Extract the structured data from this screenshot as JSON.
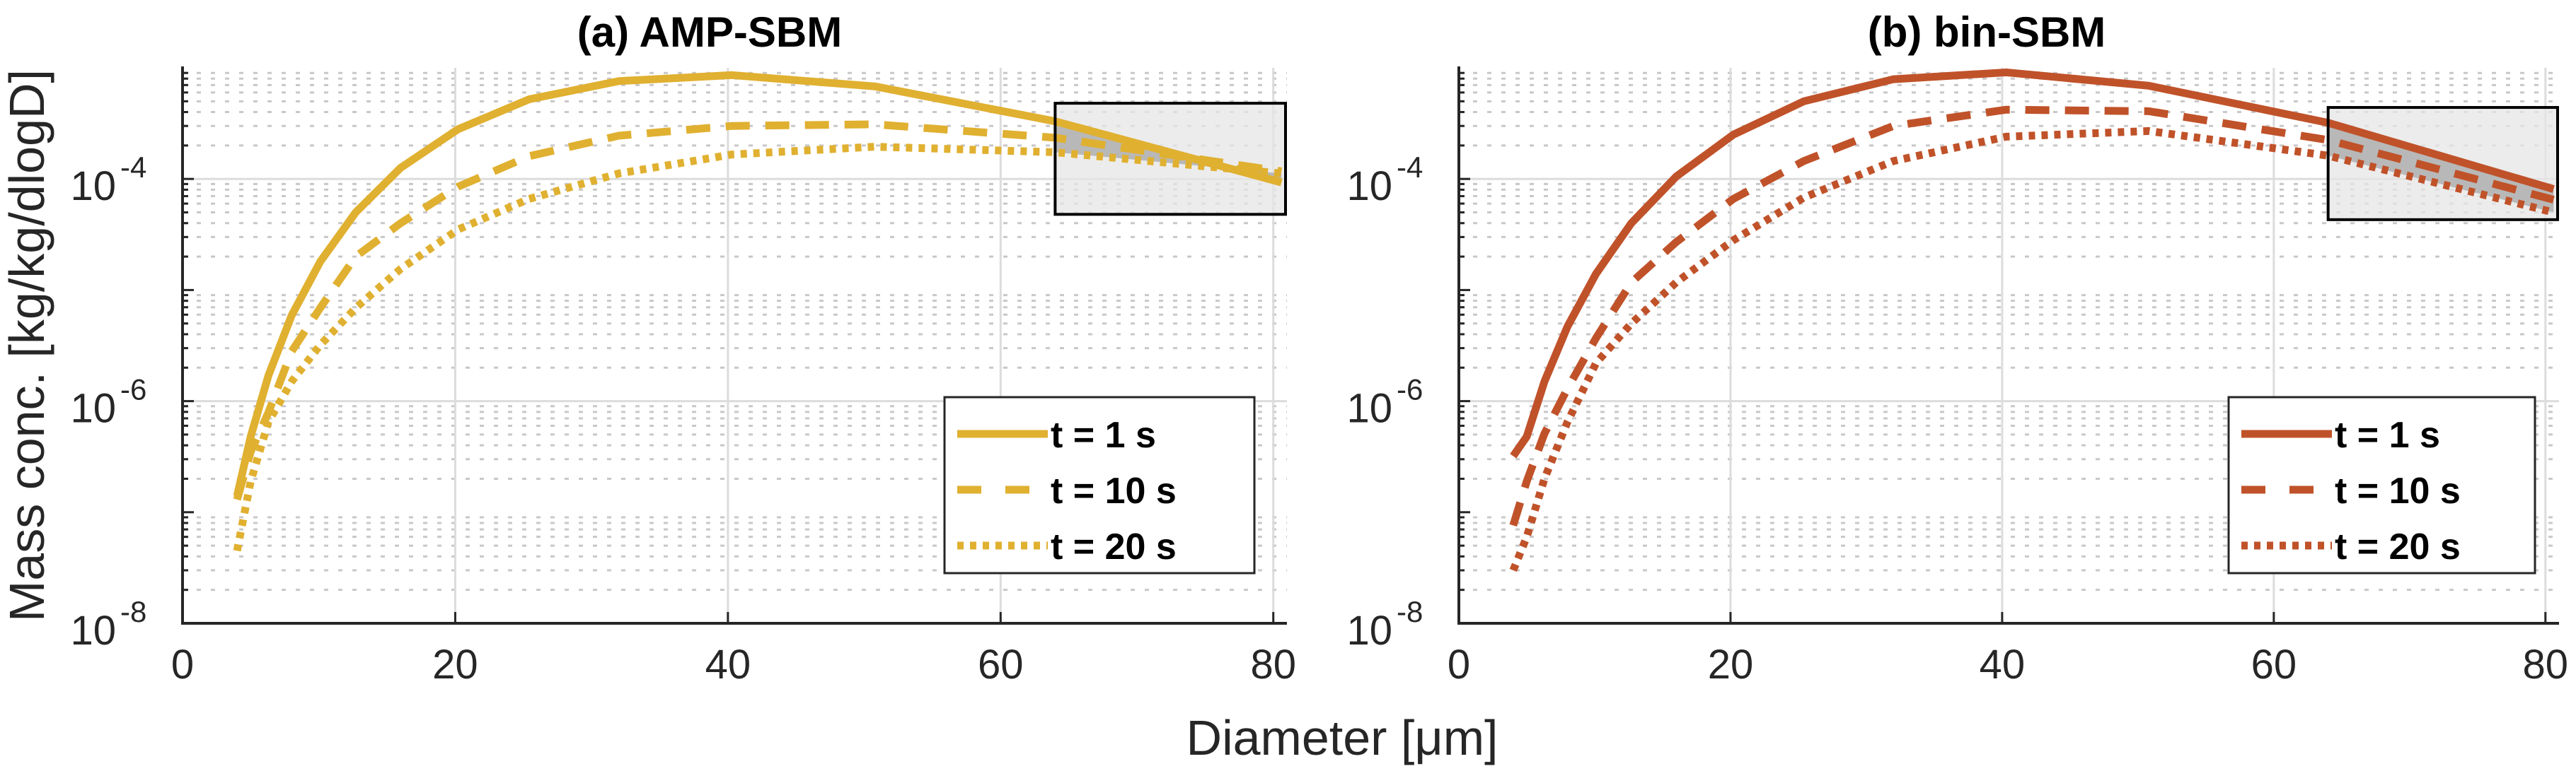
{
  "colors": {
    "panel_a": "#E0B030",
    "panel_b": "#C0522A",
    "highlight_box": "#E6E6E6",
    "highlight_band": "#B8B8B8"
  },
  "chart_data": [
    {
      "type": "line",
      "title": "(a) AMP-SBM",
      "xlabel": "Diameter [μm]",
      "ylabel": "Mass conc. [kg/kg/dlogD]",
      "yscale": "log",
      "xlim": [
        0,
        81
      ],
      "ylim": [
        1e-08,
        0.001
      ],
      "xticks": [
        0,
        20,
        40,
        60,
        80
      ],
      "xtick_labels": [
        "0",
        "20",
        "40",
        "60",
        "80"
      ],
      "yticks": [
        1e-08,
        1e-06,
        0.0001
      ],
      "ytick_labels": [
        {
          "base": "10",
          "exp": "-8"
        },
        {
          "base": "10",
          "exp": "-6"
        },
        {
          "base": "10",
          "exp": "-4"
        }
      ],
      "grid": true,
      "legend_position": "lower-right",
      "highlight_region": {
        "x": [
          64,
          81
        ],
        "y": [
          4.8e-05,
          0.00048
        ]
      },
      "x": [
        4.0,
        5.0,
        6.3,
        8.0,
        10.1,
        12.7,
        16.0,
        20.2,
        25.4,
        32.0,
        40.3,
        50.8,
        64.0,
        80.6
      ],
      "series": [
        {
          "name": "t = 1 s",
          "style": "solid",
          "values": [
            1.4e-07,
            4.8e-07,
            1.7e-06,
            5.9e-06,
            1.8e-05,
            5e-05,
            0.000126,
            0.00028,
            0.00052,
            0.00076,
            0.00086,
            0.00068,
            0.00033,
            9.3e-05
          ]
        },
        {
          "name": "t = 10 s",
          "style": "dashed",
          "values": [
            1.3e-07,
            3.5e-07,
            7.9e-07,
            2.8e-06,
            6.9e-06,
            2e-05,
            4e-05,
            8.5e-05,
            0.00016,
            0.000245,
            0.0003,
            0.00031,
            0.000235,
            0.000117
          ]
        },
        {
          "name": "t = 20 s",
          "style": "dotted",
          "values": [
            4.5e-08,
            1.9e-07,
            6.5e-07,
            1.5e-06,
            3.2e-06,
            6.9e-06,
            1.55e-05,
            3.5e-05,
            6.6e-05,
            0.000112,
            0.000166,
            0.000195,
            0.000174,
            0.000112
          ]
        }
      ]
    },
    {
      "type": "line",
      "title": "(b) bin-SBM",
      "xlabel": "Diameter [μm]",
      "ylabel": "Mass conc. [kg/kg/dlogD]",
      "yscale": "log",
      "xlim": [
        0,
        81
      ],
      "ylim": [
        1e-08,
        0.001
      ],
      "xticks": [
        0,
        20,
        40,
        60,
        80
      ],
      "xtick_labels": [
        "0",
        "20",
        "40",
        "60",
        "80"
      ],
      "yticks": [
        1e-08,
        1e-06,
        0.0001
      ],
      "ytick_labels": [
        {
          "base": "10",
          "exp": "-8"
        },
        {
          "base": "10",
          "exp": "-6"
        },
        {
          "base": "10",
          "exp": "-4"
        }
      ],
      "grid": true,
      "legend_position": "lower-right",
      "highlight_region": {
        "x": [
          64,
          81
        ],
        "y": [
          4.3e-05,
          0.00044
        ]
      },
      "x": [
        4.0,
        5.0,
        6.3,
        8.0,
        10.1,
        12.7,
        16.0,
        20.2,
        25.4,
        32.0,
        40.3,
        50.8,
        64.0,
        80.6
      ],
      "series": [
        {
          "name": "t = 1 s",
          "style": "solid",
          "values": [
            3.2e-07,
            4.8e-07,
            1.5e-06,
            4.7e-06,
            1.4e-05,
            4e-05,
            0.000105,
            0.00025,
            0.0005,
            0.00079,
            0.00091,
            0.00069,
            0.00032,
            8.1e-05
          ]
        },
        {
          "name": "t = 10 s",
          "style": "dashed",
          "values": [
            7.6e-08,
            1.9e-07,
            5.1e-07,
            1.3e-06,
            3.7e-06,
            1.17e-05,
            2.7e-05,
            6.6e-05,
            0.000145,
            0.0003,
            0.00042,
            0.000407,
            0.000224,
            6.5e-05
          ]
        },
        {
          "name": "t = 20 s",
          "style": "dotted",
          "values": [
            3e-08,
            6e-08,
            2e-07,
            6.5e-07,
            2.2e-06,
            5e-06,
            1.17e-05,
            2.8e-05,
            6.8e-05,
            0.000145,
            0.00024,
            0.00027,
            0.000162,
            5e-05
          ]
        }
      ]
    }
  ],
  "figure": {
    "xlabel": "Diameter [μm]",
    "ylabel": "Mass conc. [kg/kg/dlogD]"
  }
}
